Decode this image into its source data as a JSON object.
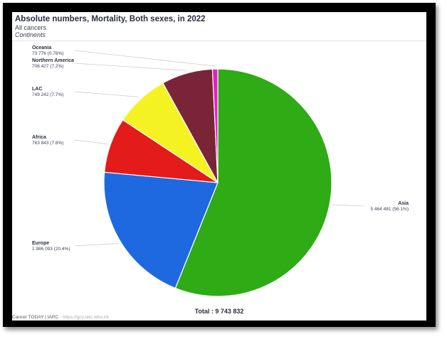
{
  "header": {
    "title": "Absolute numbers, Mortality, Both sexes, in 2022",
    "subtitle": "All cancers",
    "subtitle2": "Continents"
  },
  "footer": {
    "total": "Total : 9 743 832",
    "source": "Cancer TODAY | IARC",
    "source_url": "- https://gco.iarc.who.int"
  },
  "chart_data": {
    "type": "pie",
    "title": "Absolute numbers, Mortality, Both sexes, in 2022",
    "total": 9743832,
    "slices": [
      {
        "name": "Asia",
        "value": 5464481,
        "label_value": "5 464 481 (56.1%)",
        "color": "#2eab15"
      },
      {
        "name": "Europe",
        "value": 1986093,
        "label_value": "1 986 093 (20.4%)",
        "color": "#1e69e0"
      },
      {
        "name": "Africa",
        "value": 763843,
        "label_value": "763 843 (7.8%)",
        "color": "#e31b1b"
      },
      {
        "name": "LAC",
        "value": 749242,
        "label_value": "749 242 (7.7%)",
        "color": "#f5f223"
      },
      {
        "name": "Northern America",
        "value": 706427,
        "label_value": "706 427 (7.2%)",
        "color": "#7a2438"
      },
      {
        "name": "Oceania",
        "value": 73776,
        "label_value": "73 776 (0.76%)",
        "color": "#e021c8"
      }
    ]
  }
}
